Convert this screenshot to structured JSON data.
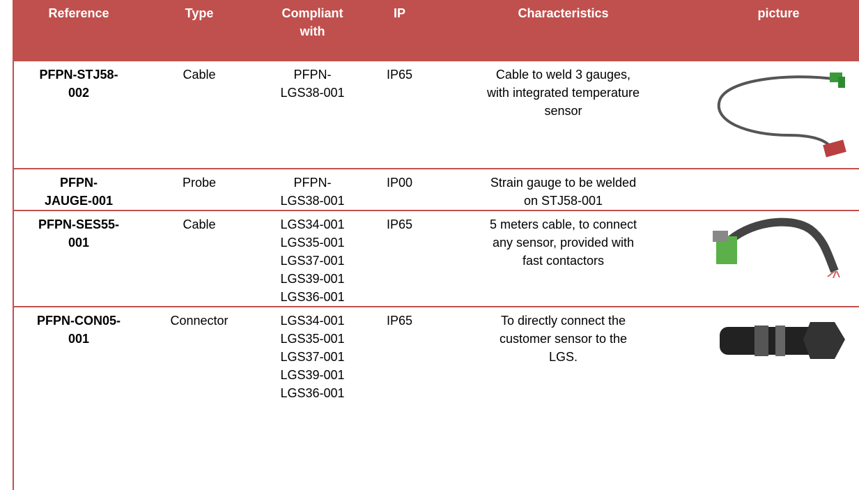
{
  "header": {
    "columns": [
      "Reference",
      "Type",
      "Compliant with",
      "IP",
      "Characteristics",
      "picture"
    ]
  },
  "rows": [
    {
      "reference": "PFPN-STJ58-002",
      "type": "Cable",
      "compliant": [
        "PFPN-LGS38-001"
      ],
      "ip": "IP65",
      "characteristics": "Cable to weld 3 gauges, with integrated temperature sensor"
    },
    {
      "reference": "PFPN-JAUGE-001",
      "type": "Probe",
      "compliant": [
        "PFPN-LGS38-001"
      ],
      "ip": "IP00",
      "characteristics": "Strain gauge to be welded on STJ58-001"
    },
    {
      "reference": "PFPN-SES55-001",
      "type": "Cable",
      "compliant": [
        "LGS34-001",
        "LGS35-001",
        "LGS37-001",
        "LGS39-001",
        "LGS36-001"
      ],
      "ip": "IP65",
      "characteristics": "5 meters cable, to connect any sensor, provided with fast contactors"
    },
    {
      "reference": "PFPN-CON05-001",
      "type": "Connector",
      "compliant": [
        "LGS34-001",
        "LGS35-001",
        "LGS37-001",
        "LGS39-001",
        "LGS36-001"
      ],
      "ip": "IP65",
      "characteristics": "To directly connect the customer sensor to the LGS."
    }
  ]
}
